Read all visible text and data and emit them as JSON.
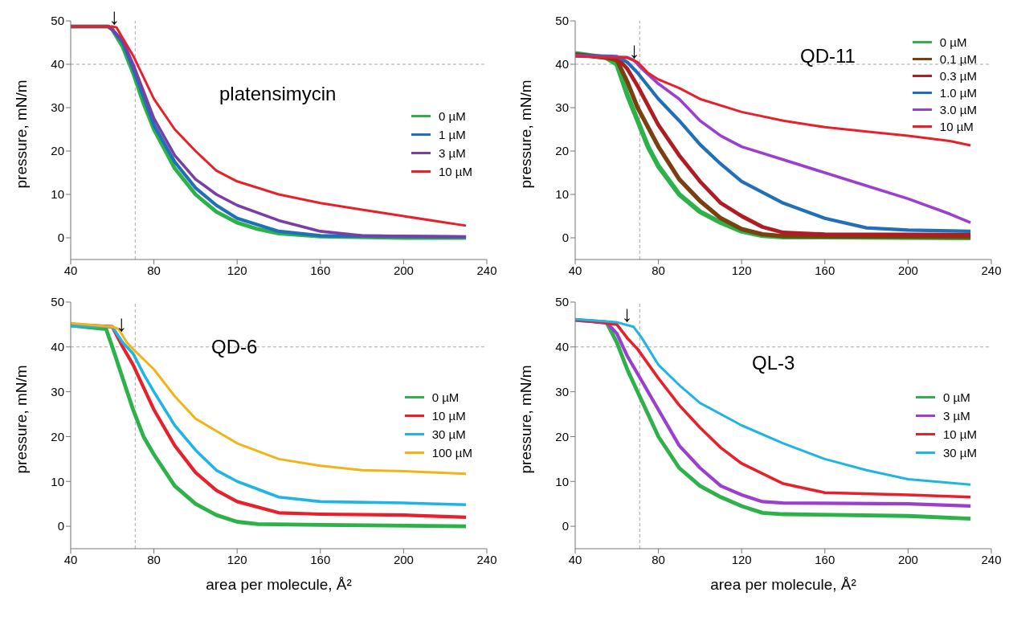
{
  "chart_data": [
    {
      "type": "line",
      "title": "platensimycin",
      "ylabel": "pressure, mN/m",
      "xlim": [
        40,
        240
      ],
      "xticks": [
        40,
        80,
        120,
        160,
        200,
        240
      ],
      "ylim": [
        -5,
        50
      ],
      "yticks": [
        0,
        10,
        20,
        30,
        40,
        50
      ],
      "legend": "right",
      "line_style": "solid",
      "ref_lines": [
        {
          "axis": "y",
          "value": 40,
          "color": "#a6a6a6",
          "line_style": "dashed"
        },
        {
          "axis": "x",
          "value": 71,
          "color": "#a6a6a6",
          "line_style": "dashed"
        }
      ],
      "annotations": [
        {
          "text": "↓",
          "x": 61,
          "y": 48.6
        }
      ],
      "series": [
        {
          "name": "0 µM",
          "color": "#2db24a",
          "x": [
            40,
            58,
            60,
            65,
            70,
            75,
            80,
            90,
            100,
            110,
            120,
            130,
            140,
            160,
            200,
            230
          ],
          "values": [
            48.7,
            48.7,
            48,
            44,
            38,
            31,
            25,
            16,
            10,
            6,
            3.5,
            2,
            1,
            0.3,
            0,
            0
          ]
        },
        {
          "name": "1 µM",
          "color": "#1f6fba",
          "x": [
            40,
            58,
            60,
            65,
            70,
            80,
            90,
            100,
            110,
            120,
            140,
            160,
            230
          ],
          "values": [
            48.7,
            48.7,
            48,
            45,
            39,
            26,
            17.5,
            11.5,
            7.5,
            4.5,
            1.5,
            0.5,
            0.2
          ]
        },
        {
          "name": "3 µM",
          "color": "#7a3fa6",
          "x": [
            40,
            58,
            60,
            65,
            70,
            80,
            90,
            100,
            110,
            120,
            140,
            160,
            180,
            230
          ],
          "values": [
            48.7,
            48.7,
            48,
            45.5,
            40,
            27.5,
            19,
            13.5,
            10,
            7.5,
            4,
            1.5,
            0.5,
            0.2
          ]
        },
        {
          "name": "10 µM",
          "color": "#e8202a",
          "x": [
            40,
            60,
            62,
            65,
            70,
            75,
            80,
            90,
            100,
            110,
            120,
            140,
            160,
            180,
            200,
            220,
            230
          ],
          "values": [
            48.7,
            48.7,
            48.5,
            46,
            42,
            37,
            32,
            25,
            20,
            15.5,
            13,
            10,
            8,
            6.5,
            5,
            3.5,
            2.8
          ]
        }
      ]
    },
    {
      "type": "line",
      "title": "QD-11",
      "ylabel": "pressure, mN/m",
      "xlim": [
        40,
        240
      ],
      "xticks": [
        40,
        80,
        120,
        160,
        200,
        240
      ],
      "ylim": [
        -5,
        50
      ],
      "yticks": [
        0,
        10,
        20,
        30,
        40,
        50
      ],
      "legend": "top right",
      "line_style": "solid",
      "ref_lines": [
        {
          "axis": "y",
          "value": 40,
          "color": "#a6a6a6",
          "line_style": "dashed"
        },
        {
          "axis": "x",
          "value": 71,
          "color": "#a6a6a6",
          "line_style": "dashed"
        }
      ],
      "annotations": [
        {
          "text": "↓",
          "x": 68.5,
          "y": 40.8
        }
      ],
      "series": [
        {
          "name": "0 µM",
          "color": "#2db24a",
          "x": [
            40,
            55,
            60,
            65,
            70,
            75,
            80,
            90,
            100,
            110,
            120,
            130,
            140,
            230
          ],
          "values": [
            42.5,
            41.5,
            40,
            33,
            27,
            21,
            16.5,
            10,
            6,
            3.5,
            1.5,
            0.5,
            0.2,
            0
          ]
        },
        {
          "name": "0.1 µM",
          "color": "#7b3f12",
          "x": [
            40,
            55,
            60,
            65,
            70,
            80,
            90,
            100,
            110,
            120,
            130,
            140,
            230
          ],
          "values": [
            42.3,
            41.5,
            41,
            36,
            30,
            21,
            13.5,
            8.5,
            4.5,
            2,
            0.8,
            0.4,
            0.2
          ]
        },
        {
          "name": "0.3 µM",
          "color": "#b01c22",
          "x": [
            40,
            55,
            60,
            65,
            70,
            80,
            90,
            100,
            110,
            120,
            130,
            140,
            160,
            230
          ],
          "values": [
            42.2,
            41.7,
            41.5,
            39,
            35,
            26,
            19,
            13,
            8,
            5,
            2.5,
            1.2,
            0.8,
            0.7
          ]
        },
        {
          "name": "1.0 µM",
          "color": "#1f6fba",
          "x": [
            40,
            60,
            65,
            70,
            75,
            80,
            90,
            100,
            110,
            120,
            140,
            160,
            180,
            200,
            230
          ],
          "values": [
            42,
            41.8,
            40.5,
            38,
            35,
            32,
            27,
            21.5,
            17,
            13,
            8,
            4.5,
            2.3,
            1.8,
            1.5
          ]
        },
        {
          "name": "3.0 µM",
          "color": "#9b3fcf",
          "x": [
            40,
            65,
            68,
            72,
            80,
            90,
            100,
            110,
            120,
            140,
            160,
            180,
            200,
            220,
            230
          ],
          "values": [
            41.9,
            41.6,
            41,
            39,
            35.5,
            32,
            27,
            23.5,
            21,
            18,
            15,
            12,
            9,
            5.5,
            3.5
          ]
        },
        {
          "name": "10 µM",
          "color": "#e8202a",
          "x": [
            40,
            65,
            70,
            75,
            80,
            90,
            100,
            120,
            140,
            160,
            180,
            200,
            220,
            230
          ],
          "values": [
            41.8,
            41.5,
            40.5,
            38,
            36.5,
            34.5,
            32,
            29,
            27,
            25.5,
            24.5,
            23.5,
            22.3,
            21.3
          ]
        }
      ]
    },
    {
      "type": "line",
      "title": "QD-6",
      "xlabel": "area per molecule, Å²",
      "ylabel": "pressure, mN/m",
      "xlim": [
        40,
        240
      ],
      "xticks": [
        40,
        80,
        120,
        160,
        200,
        240
      ],
      "ylim": [
        -5,
        50
      ],
      "yticks": [
        0,
        10,
        20,
        30,
        40,
        50
      ],
      "legend": "right",
      "line_style": "solid",
      "ref_lines": [
        {
          "axis": "y",
          "value": 40,
          "color": "#a6a6a6",
          "line_style": "dashed"
        },
        {
          "axis": "x",
          "value": 71,
          "color": "#a6a6a6",
          "line_style": "dashed"
        }
      ],
      "annotations": [
        {
          "text": "↓",
          "x": 64.5,
          "y": 42.9
        }
      ],
      "series": [
        {
          "name": "0 µM",
          "color": "#2db24a",
          "x": [
            40,
            57,
            60,
            65,
            70,
            75,
            80,
            90,
            100,
            110,
            120,
            130,
            160,
            230
          ],
          "values": [
            44.8,
            44,
            40,
            33,
            26,
            20,
            16,
            9,
            5,
            2.5,
            1,
            0.5,
            0.3,
            0
          ]
        },
        {
          "name": "10 µM",
          "color": "#e8202a",
          "x": [
            40,
            60,
            65,
            70,
            75,
            80,
            90,
            100,
            110,
            120,
            140,
            160,
            200,
            230
          ],
          "values": [
            45,
            44.5,
            40,
            36,
            31,
            26,
            18,
            12,
            8,
            5.5,
            3,
            2.7,
            2.5,
            2
          ]
        },
        {
          "name": "30 µM",
          "color": "#1fb4e6",
          "x": [
            40,
            60,
            65,
            70,
            75,
            80,
            90,
            100,
            110,
            120,
            140,
            160,
            200,
            230
          ],
          "values": [
            44.7,
            44.5,
            41,
            38.5,
            34,
            30,
            22.5,
            17,
            12.5,
            10,
            6.5,
            5.5,
            5.2,
            4.8
          ]
        },
        {
          "name": "100 µM",
          "color": "#f2b415",
          "x": [
            40,
            60,
            63,
            67,
            70,
            80,
            90,
            100,
            120,
            140,
            160,
            180,
            200,
            230
          ],
          "values": [
            45.3,
            44.5,
            44,
            41,
            39.5,
            35,
            29,
            24,
            18.5,
            15,
            13.5,
            12.5,
            12.3,
            11.7
          ]
        }
      ]
    },
    {
      "type": "line",
      "title": "QL-3",
      "xlabel": "area per molecule, Å²",
      "ylabel": "pressure, mN/m",
      "xlim": [
        40,
        240
      ],
      "xticks": [
        40,
        80,
        120,
        160,
        200,
        240
      ],
      "ylim": [
        -5,
        50
      ],
      "yticks": [
        0,
        10,
        20,
        30,
        40,
        50
      ],
      "legend": "right",
      "line_style": "solid",
      "ref_lines": [
        {
          "axis": "y",
          "value": 40,
          "color": "#a6a6a6",
          "line_style": "dashed"
        },
        {
          "axis": "x",
          "value": 71,
          "color": "#a6a6a6",
          "line_style": "dashed"
        }
      ],
      "annotations": [
        {
          "text": "↓",
          "x": 65,
          "y": 44.9
        }
      ],
      "series": [
        {
          "name": "0 µM",
          "color": "#2db24a",
          "x": [
            40,
            55,
            60,
            65,
            70,
            75,
            80,
            90,
            100,
            110,
            120,
            130,
            140,
            200,
            230
          ],
          "values": [
            46,
            45.5,
            41,
            35,
            30,
            25,
            20,
            13,
            9,
            6.5,
            4.5,
            3,
            2.7,
            2.3,
            1.7
          ]
        },
        {
          "name": "3 µM",
          "color": "#9b3fcf",
          "x": [
            40,
            55,
            60,
            65,
            70,
            80,
            90,
            100,
            110,
            120,
            130,
            140,
            200,
            230
          ],
          "values": [
            46,
            45.5,
            43,
            38,
            34,
            26,
            18,
            13,
            9,
            7,
            5.5,
            5.2,
            5,
            4.5
          ]
        },
        {
          "name": "10 µM",
          "color": "#e8202a",
          "x": [
            40,
            60,
            65,
            70,
            80,
            90,
            100,
            110,
            120,
            140,
            160,
            200,
            230
          ],
          "values": [
            46.1,
            45,
            42,
            39.5,
            33,
            27,
            22,
            17.5,
            14,
            9.5,
            7.5,
            7,
            6.5
          ]
        },
        {
          "name": "30 µM",
          "color": "#1fb4e6",
          "x": [
            40,
            60,
            68,
            72,
            80,
            90,
            100,
            120,
            140,
            160,
            180,
            200,
            230
          ],
          "values": [
            46.2,
            45.5,
            44.5,
            42,
            36,
            31.5,
            27.5,
            22.5,
            18.5,
            15,
            12.5,
            10.5,
            9.3
          ]
        }
      ]
    }
  ]
}
